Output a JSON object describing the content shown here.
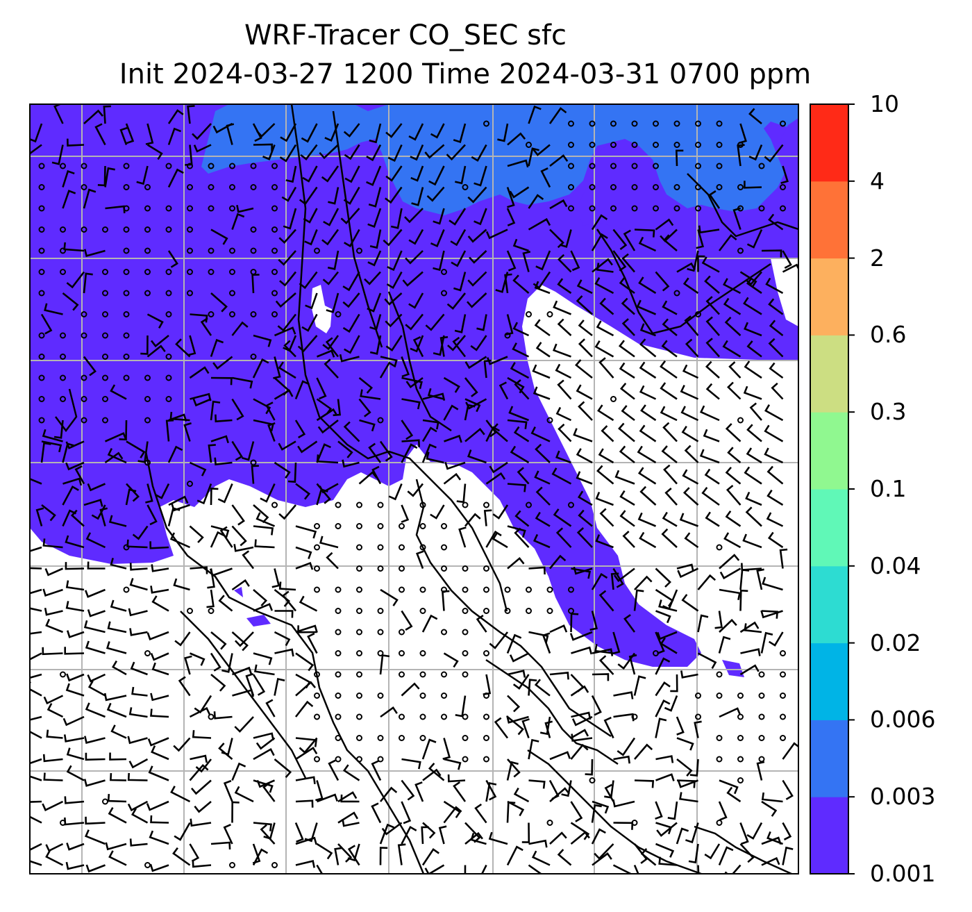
{
  "title": {
    "line1": "WRF-Tracer CO_SEC sfc",
    "line2": "Init 2024-03-27 1200 Time 2024-03-31 0700 ppm"
  },
  "colorbar": {
    "levels": [
      "0.001",
      "0.003",
      "0.006",
      "0.02",
      "0.04",
      "0.1",
      "0.3",
      "0.6",
      "2",
      "4",
      "10"
    ],
    "colors": [
      "#5f2bff",
      "#3474f3",
      "#00b4e6",
      "#2ddcd2",
      "#60f8b7",
      "#90f890",
      "#ccde82",
      "#fdb05e",
      "#ff7237",
      "#ff2a17"
    ]
  },
  "map": {
    "field_colors": {
      "below_min": "#ffffff",
      "band_0_001_0_003": "#5f2bff",
      "band_0_003_0_006": "#3474f3"
    },
    "gridlines": true,
    "gridline_color": "#b4b4b4",
    "overlay": "wind barbs and calm-wind circles",
    "coastline_color": "#000000"
  }
}
